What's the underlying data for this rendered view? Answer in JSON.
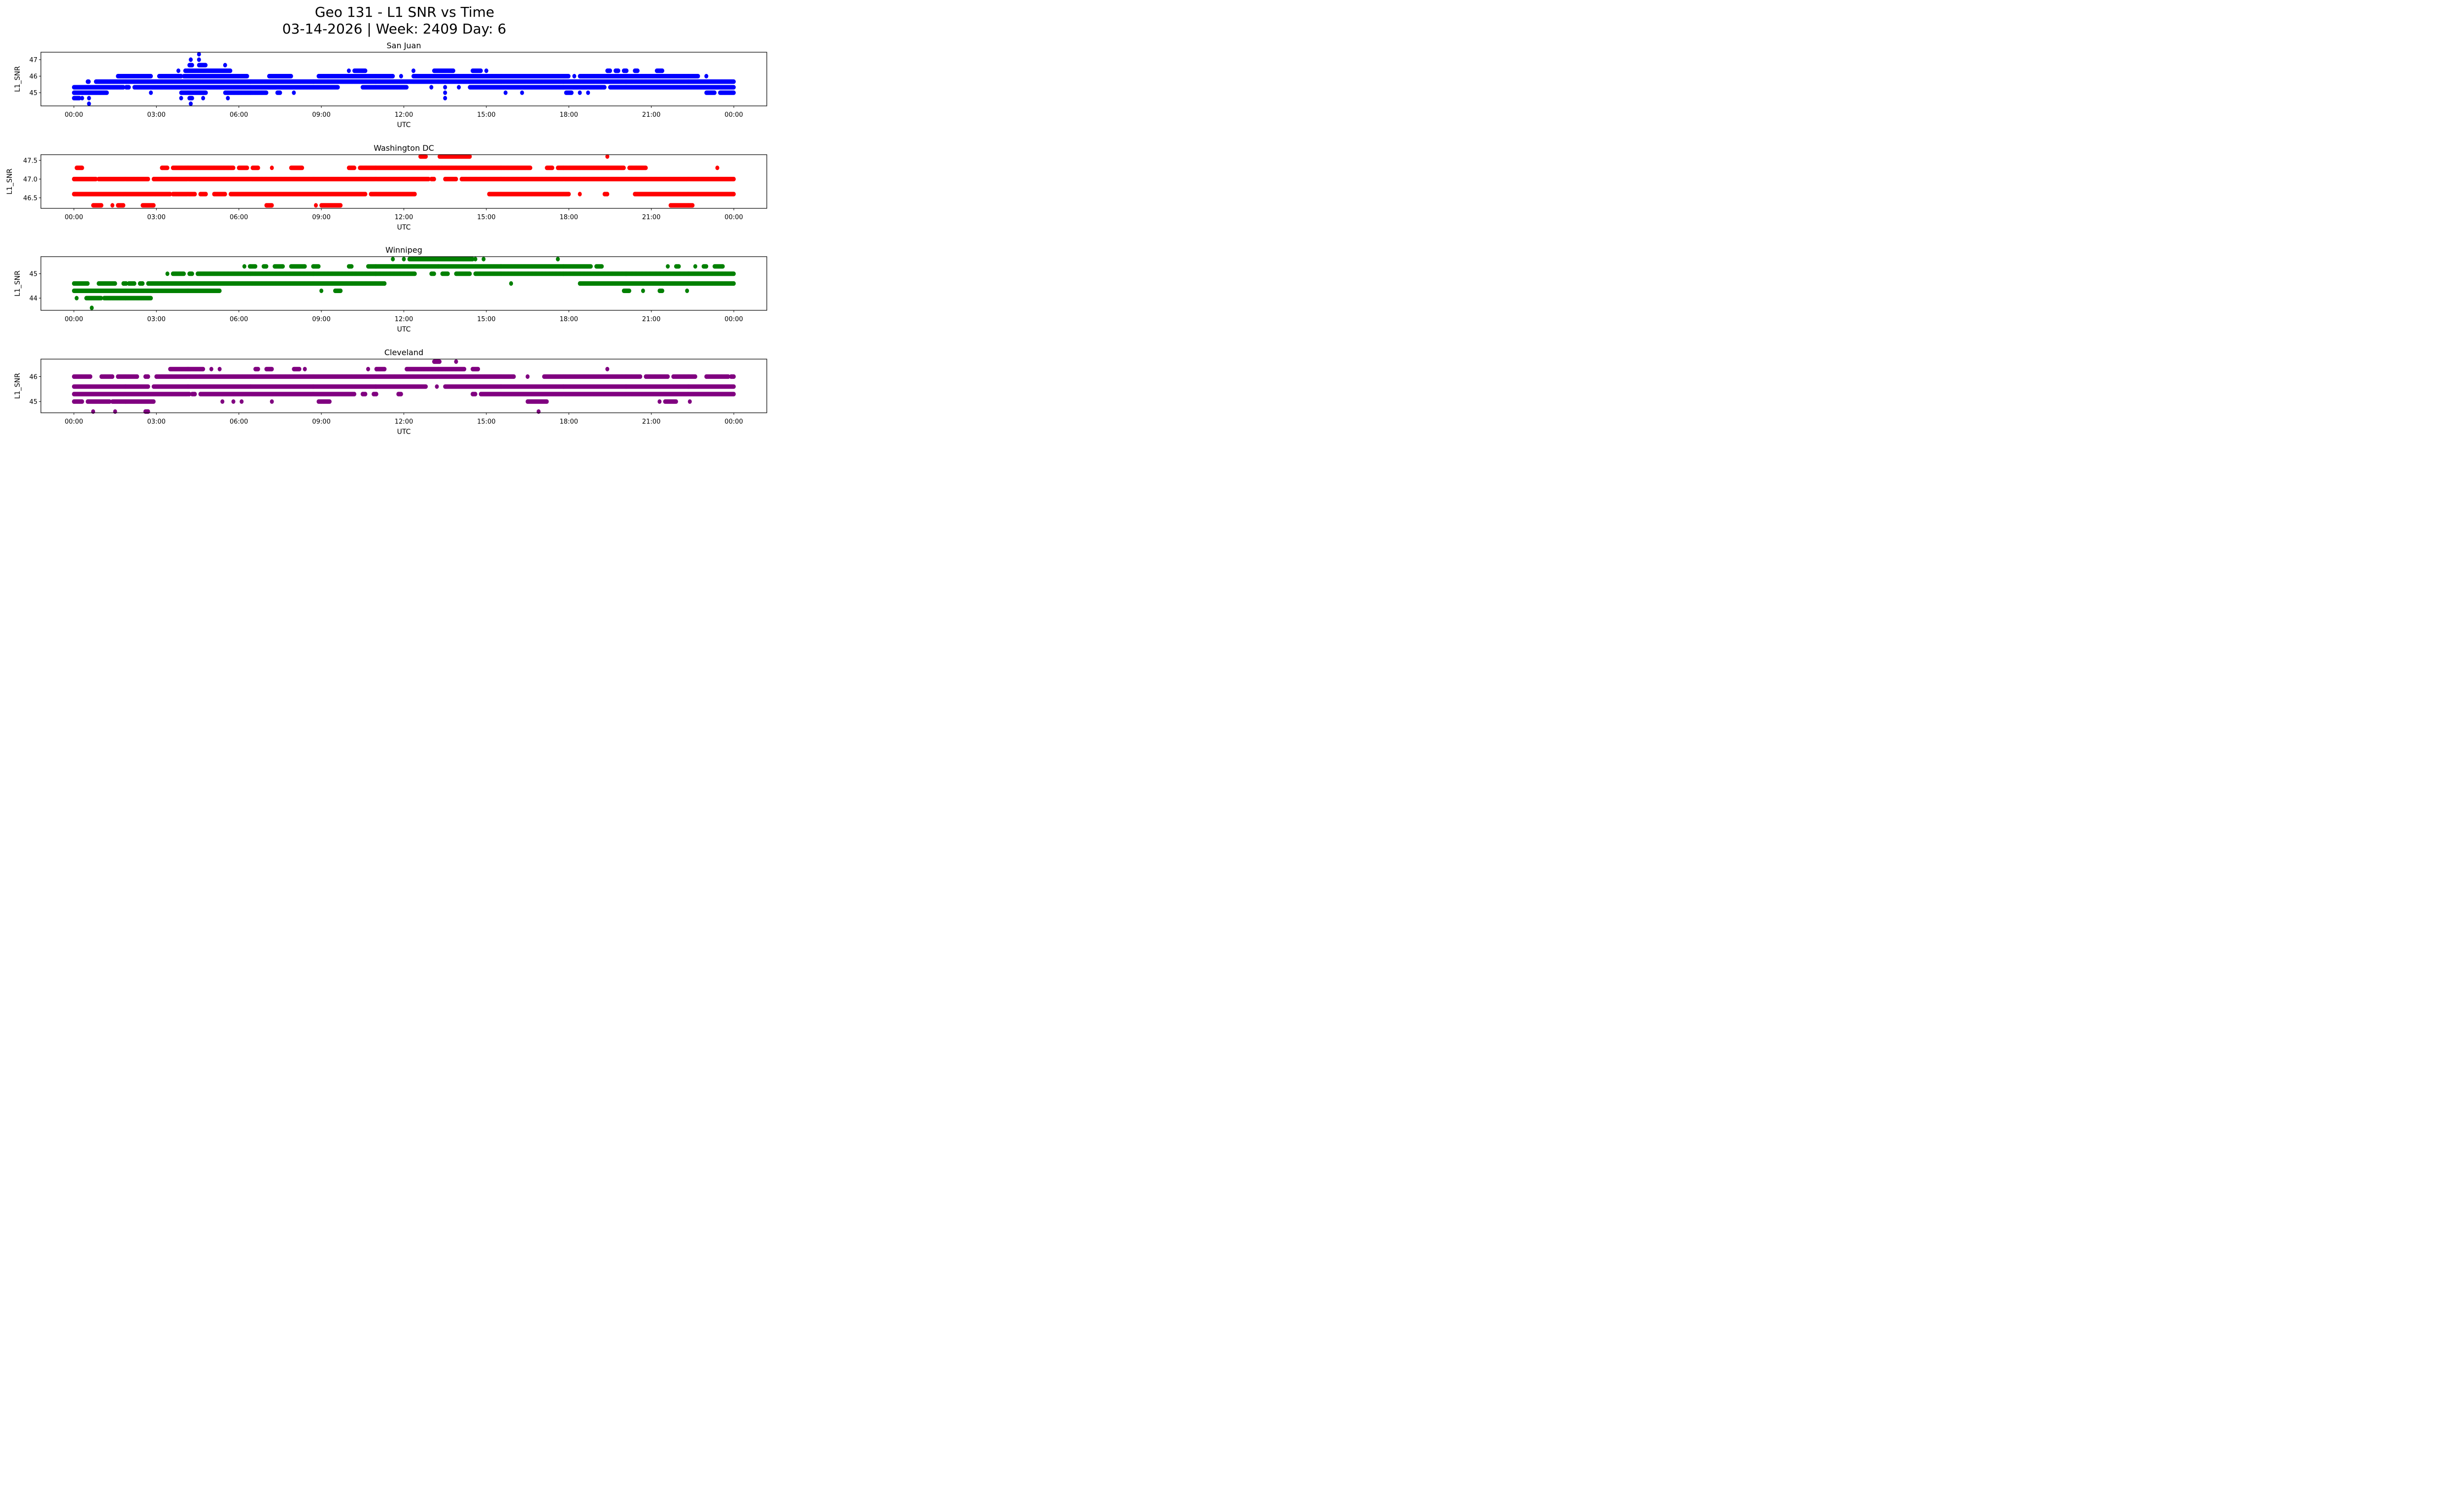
{
  "chart_data": {
    "type": "scatter",
    "title_line1": "Geo 131 - L1 SNR vs Time",
    "title_line2": "03-14-2026 | Week: 2409 Day: 6",
    "xlabel": "UTC",
    "ylabel": "L1_SNR",
    "xlim_hours": [
      -1.2,
      25.2
    ],
    "x_tick_labels": [
      "00:00",
      "03:00",
      "06:00",
      "09:00",
      "12:00",
      "15:00",
      "18:00",
      "21:00",
      "00:00"
    ],
    "x_tick_hours": [
      0,
      3,
      6,
      9,
      12,
      15,
      18,
      21,
      24
    ],
    "grid": false,
    "panels": [
      {
        "name": "San Juan",
        "color": "#0000ff",
        "ylim": [
          44.2,
          47.45
        ],
        "y_ticks": [
          45,
          46,
          47
        ],
        "y_tick_labels": [
          "45",
          "46",
          "47"
        ],
        "runs": [
          {
            "y": 47.33,
            "ranges": [
              [
                4.55,
                4.55
              ]
            ]
          },
          {
            "y": 47.0,
            "ranges": [
              [
                4.25,
                4.25
              ],
              [
                4.55,
                4.55
              ]
            ]
          },
          {
            "y": 46.67,
            "ranges": [
              [
                4.2,
                4.3
              ],
              [
                4.55,
                4.8
              ],
              [
                5.5,
                5.5
              ]
            ]
          },
          {
            "y": 46.33,
            "ranges": [
              [
                3.8,
                3.8
              ],
              [
                4.05,
                5.7
              ],
              [
                10.0,
                10.0
              ],
              [
                10.2,
                10.6
              ],
              [
                12.35,
                12.35
              ],
              [
                13.1,
                13.8
              ],
              [
                14.5,
                14.8
              ],
              [
                15.0,
                15.0
              ],
              [
                19.4,
                19.5
              ],
              [
                19.7,
                19.8
              ],
              [
                20.0,
                20.1
              ],
              [
                20.4,
                20.5
              ],
              [
                21.2,
                21.4
              ]
            ]
          },
          {
            "y": 46.0,
            "ranges": [
              [
                1.6,
                2.8
              ],
              [
                3.1,
                3.9
              ],
              [
                4.0,
                6.3
              ],
              [
                7.1,
                7.9
              ],
              [
                8.9,
                11.6
              ],
              [
                11.9,
                11.9
              ],
              [
                12.35,
                18.0
              ],
              [
                18.2,
                18.2
              ],
              [
                18.4,
                22.7
              ],
              [
                23.0,
                23.0
              ]
            ]
          },
          {
            "y": 45.67,
            "ranges": [
              [
                0.5,
                0.55
              ],
              [
                0.8,
                24.0
              ]
            ]
          },
          {
            "y": 45.33,
            "ranges": [
              [
                0.0,
                1.8
              ],
              [
                1.9,
                2.0
              ],
              [
                2.2,
                9.6
              ],
              [
                10.5,
                12.1
              ],
              [
                13.0,
                13.0
              ],
              [
                13.5,
                13.5
              ],
              [
                14.0,
                14.0
              ],
              [
                14.4,
                19.3
              ],
              [
                19.5,
                24.0
              ]
            ]
          },
          {
            "y": 45.0,
            "ranges": [
              [
                0.0,
                1.2
              ],
              [
                2.8,
                2.8
              ],
              [
                3.9,
                4.8
              ],
              [
                5.5,
                7.0
              ],
              [
                7.4,
                7.5
              ],
              [
                8.0,
                8.0
              ],
              [
                13.5,
                13.5
              ],
              [
                15.7,
                15.7
              ],
              [
                16.3,
                16.3
              ],
              [
                17.9,
                18.1
              ],
              [
                18.4,
                18.4
              ],
              [
                18.7,
                18.7
              ],
              [
                23.0,
                23.3
              ],
              [
                23.5,
                24.0
              ]
            ]
          },
          {
            "y": 44.67,
            "ranges": [
              [
                0.0,
                0.2
              ],
              [
                0.3,
                0.3
              ],
              [
                0.55,
                0.55
              ],
              [
                3.9,
                3.9
              ],
              [
                4.2,
                4.3
              ],
              [
                4.7,
                4.7
              ],
              [
                5.6,
                5.6
              ],
              [
                13.5,
                13.5
              ]
            ]
          },
          {
            "y": 44.33,
            "ranges": [
              [
                0.55,
                0.55
              ],
              [
                4.25,
                4.25
              ]
            ]
          }
        ]
      },
      {
        "name": "Washington DC",
        "color": "#ff0000",
        "ylim": [
          46.22,
          47.65
        ],
        "y_ticks": [
          46.5,
          47.0,
          47.5
        ],
        "y_tick_labels": [
          "46.5",
          "47.0",
          "47.5"
        ],
        "runs": [
          {
            "y": 47.6,
            "ranges": [
              [
                12.6,
                12.8
              ],
              [
                13.3,
                14.4
              ],
              [
                19.4,
                19.4
              ]
            ]
          },
          {
            "y": 47.3,
            "ranges": [
              [
                0.1,
                0.3
              ],
              [
                3.2,
                3.4
              ],
              [
                3.6,
                5.8
              ],
              [
                6.0,
                6.3
              ],
              [
                6.5,
                6.7
              ],
              [
                7.2,
                7.2
              ],
              [
                7.9,
                8.3
              ],
              [
                10.0,
                10.2
              ],
              [
                10.4,
                16.6
              ],
              [
                17.2,
                17.4
              ],
              [
                17.6,
                20.0
              ],
              [
                20.2,
                20.8
              ],
              [
                23.4,
                23.4
              ]
            ]
          },
          {
            "y": 47.0,
            "ranges": [
              [
                0.0,
                0.8
              ],
              [
                0.9,
                2.7
              ],
              [
                2.9,
                12.9
              ],
              [
                13.0,
                13.1
              ],
              [
                13.5,
                13.9
              ],
              [
                14.1,
                24.0
              ]
            ]
          },
          {
            "y": 46.6,
            "ranges": [
              [
                0.0,
                3.5
              ],
              [
                3.6,
                4.4
              ],
              [
                4.6,
                4.8
              ],
              [
                5.1,
                5.5
              ],
              [
                5.7,
                10.6
              ],
              [
                10.8,
                12.4
              ],
              [
                15.1,
                18.0
              ],
              [
                18.4,
                18.4
              ],
              [
                19.3,
                19.4
              ],
              [
                20.4,
                24.0
              ]
            ]
          },
          {
            "y": 46.3,
            "ranges": [
              [
                0.7,
                1.0
              ],
              [
                1.4,
                1.4
              ],
              [
                1.6,
                1.8
              ],
              [
                2.5,
                2.9
              ],
              [
                7.0,
                7.2
              ],
              [
                8.8,
                8.8
              ],
              [
                9.0,
                9.7
              ],
              [
                21.7,
                22.5
              ]
            ]
          }
        ]
      },
      {
        "name": "Winnipeg",
        "color": "#008000",
        "ylim": [
          43.5,
          45.7
        ],
        "y_ticks": [
          44,
          45
        ],
        "y_tick_labels": [
          "44",
          "45"
        ],
        "runs": [
          {
            "y": 45.6,
            "ranges": [
              [
                11.6,
                11.6
              ],
              [
                12.0,
                12.0
              ],
              [
                12.2,
                14.5
              ],
              [
                14.6,
                14.6
              ],
              [
                14.9,
                14.9
              ],
              [
                17.6,
                17.6
              ]
            ]
          },
          {
            "y": 45.3,
            "ranges": [
              [
                6.2,
                6.2
              ],
              [
                6.4,
                6.6
              ],
              [
                6.9,
                7.0
              ],
              [
                7.3,
                7.6
              ],
              [
                7.9,
                8.4
              ],
              [
                8.7,
                8.9
              ],
              [
                10.0,
                10.1
              ],
              [
                10.7,
                18.8
              ],
              [
                19.0,
                19.2
              ],
              [
                21.6,
                21.6
              ],
              [
                21.9,
                22.0
              ],
              [
                22.6,
                22.6
              ],
              [
                22.9,
                23.0
              ],
              [
                23.3,
                23.6
              ]
            ]
          },
          {
            "y": 45.0,
            "ranges": [
              [
                3.4,
                3.4
              ],
              [
                3.6,
                4.0
              ],
              [
                4.2,
                4.3
              ],
              [
                4.5,
                12.4
              ],
              [
                13.0,
                13.1
              ],
              [
                13.4,
                13.6
              ],
              [
                13.9,
                14.4
              ],
              [
                14.6,
                24.0
              ]
            ]
          },
          {
            "y": 44.6,
            "ranges": [
              [
                0.0,
                0.5
              ],
              [
                0.9,
                1.5
              ],
              [
                1.8,
                1.9
              ],
              [
                2.0,
                2.2
              ],
              [
                2.4,
                2.5
              ],
              [
                2.7,
                11.3
              ],
              [
                15.9,
                15.9
              ],
              [
                18.4,
                24.0
              ]
            ]
          },
          {
            "y": 44.3,
            "ranges": [
              [
                0.0,
                5.3
              ],
              [
                9.0,
                9.0
              ],
              [
                9.5,
                9.7
              ],
              [
                20.0,
                20.2
              ],
              [
                20.7,
                20.7
              ],
              [
                21.3,
                21.4
              ],
              [
                22.3,
                22.3
              ]
            ]
          },
          {
            "y": 44.0,
            "ranges": [
              [
                0.1,
                0.1
              ],
              [
                0.45,
                1.0
              ],
              [
                1.1,
                2.8
              ]
            ]
          },
          {
            "y": 43.6,
            "ranges": [
              [
                0.65,
                0.65
              ]
            ]
          }
        ]
      },
      {
        "name": "Cleveland",
        "color": "#800080",
        "ylim": [
          44.55,
          46.7
        ],
        "y_ticks": [
          45,
          46
        ],
        "y_tick_labels": [
          "45",
          "46"
        ],
        "runs": [
          {
            "y": 46.6,
            "ranges": [
              [
                13.1,
                13.3
              ],
              [
                13.9,
                13.9
              ]
            ]
          },
          {
            "y": 46.3,
            "ranges": [
              [
                3.5,
                4.7
              ],
              [
                5.0,
                5.0
              ],
              [
                5.3,
                5.3
              ],
              [
                6.6,
                6.7
              ],
              [
                7.0,
                7.2
              ],
              [
                8.0,
                8.2
              ],
              [
                8.4,
                8.4
              ],
              [
                10.7,
                10.7
              ],
              [
                11.0,
                11.3
              ],
              [
                12.1,
                14.2
              ],
              [
                14.5,
                14.7
              ],
              [
                19.4,
                19.4
              ]
            ]
          },
          {
            "y": 46.0,
            "ranges": [
              [
                0.0,
                0.6
              ],
              [
                1.0,
                1.4
              ],
              [
                1.6,
                2.3
              ],
              [
                2.6,
                2.7
              ],
              [
                3.0,
                16.0
              ],
              [
                16.5,
                16.5
              ],
              [
                17.1,
                20.6
              ],
              [
                20.8,
                21.6
              ],
              [
                21.8,
                22.6
              ],
              [
                23.0,
                23.8
              ],
              [
                23.9,
                24.0
              ]
            ]
          },
          {
            "y": 45.6,
            "ranges": [
              [
                0.0,
                2.7
              ],
              [
                2.9,
                12.8
              ],
              [
                13.2,
                13.2
              ],
              [
                13.5,
                24.0
              ]
            ]
          },
          {
            "y": 45.3,
            "ranges": [
              [
                0.0,
                4.2
              ],
              [
                4.3,
                4.4
              ],
              [
                4.6,
                10.2
              ],
              [
                10.5,
                10.6
              ],
              [
                10.9,
                11.0
              ],
              [
                11.8,
                11.9
              ],
              [
                14.5,
                14.6
              ],
              [
                14.8,
                24.0
              ]
            ]
          },
          {
            "y": 45.0,
            "ranges": [
              [
                0.0,
                0.3
              ],
              [
                0.5,
                1.3
              ],
              [
                1.4,
                2.9
              ],
              [
                5.4,
                5.4
              ],
              [
                5.8,
                5.8
              ],
              [
                6.1,
                6.1
              ],
              [
                7.2,
                7.2
              ],
              [
                8.9,
                9.3
              ],
              [
                16.5,
                17.2
              ],
              [
                21.3,
                21.3
              ],
              [
                21.5,
                21.9
              ],
              [
                22.4,
                22.4
              ]
            ]
          },
          {
            "y": 44.6,
            "ranges": [
              [
                0.7,
                0.7
              ],
              [
                1.5,
                1.5
              ],
              [
                2.6,
                2.7
              ],
              [
                16.9,
                16.9
              ]
            ]
          }
        ]
      }
    ]
  }
}
